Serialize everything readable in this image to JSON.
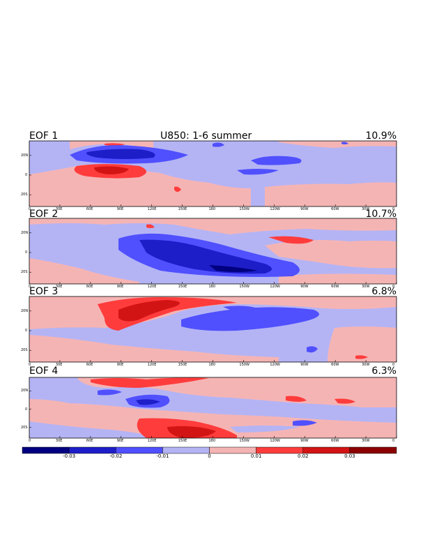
{
  "figure": {
    "title": "U850: 1-6 summer",
    "x_ticks": [
      "0",
      "30E",
      "60E",
      "90E",
      "120E",
      "150E",
      "180",
      "150W",
      "120W",
      "90W",
      "60W",
      "30W",
      "0"
    ],
    "y_ticks": [
      "20N",
      "0",
      "20S"
    ]
  },
  "panels": [
    {
      "label": "EOF 1",
      "percent": "10.9%"
    },
    {
      "label": "EOF 2",
      "percent": "10.7%"
    },
    {
      "label": "EOF 3",
      "percent": "6.8%"
    },
    {
      "label": "EOF 4",
      "percent": "6.3%"
    }
  ],
  "colorbar": {
    "colors": [
      "#000080",
      "#1e1ec8",
      "#5050ff",
      "#b4b4f5",
      "#f5b4b4",
      "#ff3c3c",
      "#d21414",
      "#8c0000"
    ],
    "labels": [
      "-0.03",
      "-0.02",
      "-0.01",
      "0",
      "0.01",
      "0.02",
      "0.03"
    ]
  }
}
